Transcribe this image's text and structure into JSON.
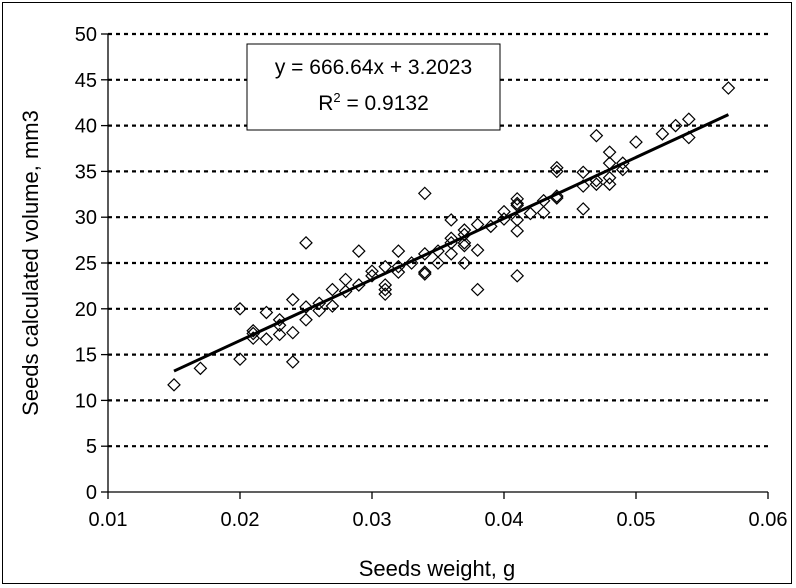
{
  "chart_data": {
    "type": "scatter",
    "xlabel": "Seeds weight, g",
    "ylabel": "Seeds calculated volume, mm3",
    "xlim": [
      0.01,
      0.06
    ],
    "ylim": [
      0,
      50
    ],
    "xticks": [
      "0.01",
      "0.02",
      "0.03",
      "0.04",
      "0.05",
      "0.06"
    ],
    "yticks": [
      "0",
      "5",
      "10",
      "15",
      "20",
      "25",
      "30",
      "35",
      "40",
      "45",
      "50"
    ],
    "grid": "horizontal dashed",
    "marker": "diamond",
    "trendline": {
      "type": "linear",
      "slope": 666.64,
      "intercept": 3.2023,
      "x_range": [
        0.015,
        0.057
      ],
      "equation": "y = 666.64x + 3.2023",
      "r2_label": "R",
      "r2_exp": "2",
      "r2_value": " = 0.9132"
    },
    "points": [
      [
        0.015,
        11.7
      ],
      [
        0.017,
        13.5
      ],
      [
        0.02,
        14.5
      ],
      [
        0.02,
        20.0
      ],
      [
        0.021,
        16.8
      ],
      [
        0.021,
        17.3
      ],
      [
        0.021,
        17.6
      ],
      [
        0.022,
        16.7
      ],
      [
        0.022,
        19.6
      ],
      [
        0.023,
        18.2
      ],
      [
        0.023,
        18.8
      ],
      [
        0.023,
        17.2
      ],
      [
        0.024,
        14.2
      ],
      [
        0.024,
        17.4
      ],
      [
        0.024,
        21.0
      ],
      [
        0.025,
        18.8
      ],
      [
        0.025,
        20.2
      ],
      [
        0.025,
        27.2
      ],
      [
        0.026,
        19.8
      ],
      [
        0.026,
        20.6
      ],
      [
        0.027,
        20.3
      ],
      [
        0.027,
        22.1
      ],
      [
        0.028,
        21.9
      ],
      [
        0.028,
        23.2
      ],
      [
        0.029,
        22.6
      ],
      [
        0.029,
        26.3
      ],
      [
        0.03,
        23.6
      ],
      [
        0.03,
        24.1
      ],
      [
        0.031,
        21.6
      ],
      [
        0.031,
        22.1
      ],
      [
        0.031,
        22.6
      ],
      [
        0.031,
        24.6
      ],
      [
        0.032,
        24.0
      ],
      [
        0.032,
        24.6
      ],
      [
        0.032,
        26.3
      ],
      [
        0.033,
        25.0
      ],
      [
        0.034,
        23.8
      ],
      [
        0.034,
        24.0
      ],
      [
        0.034,
        26.0
      ],
      [
        0.034,
        32.6
      ],
      [
        0.035,
        25.0
      ],
      [
        0.035,
        26.3
      ],
      [
        0.036,
        26.0
      ],
      [
        0.036,
        27.2
      ],
      [
        0.036,
        27.7
      ],
      [
        0.036,
        29.7
      ],
      [
        0.037,
        25.0
      ],
      [
        0.037,
        26.9
      ],
      [
        0.037,
        27.2
      ],
      [
        0.037,
        28.1
      ],
      [
        0.037,
        28.6
      ],
      [
        0.038,
        22.1
      ],
      [
        0.038,
        26.4
      ],
      [
        0.038,
        29.2
      ],
      [
        0.039,
        29.0
      ],
      [
        0.04,
        29.8
      ],
      [
        0.04,
        30.6
      ],
      [
        0.041,
        23.6
      ],
      [
        0.041,
        28.5
      ],
      [
        0.041,
        29.7
      ],
      [
        0.041,
        31.3
      ],
      [
        0.041,
        31.5
      ],
      [
        0.041,
        32.0
      ],
      [
        0.042,
        30.4
      ],
      [
        0.043,
        30.5
      ],
      [
        0.043,
        31.8
      ],
      [
        0.044,
        32.1
      ],
      [
        0.044,
        32.3
      ],
      [
        0.044,
        35.0
      ],
      [
        0.044,
        35.4
      ],
      [
        0.046,
        30.9
      ],
      [
        0.046,
        33.4
      ],
      [
        0.046,
        34.9
      ],
      [
        0.047,
        33.6
      ],
      [
        0.047,
        34.0
      ],
      [
        0.047,
        38.9
      ],
      [
        0.048,
        33.6
      ],
      [
        0.048,
        34.3
      ],
      [
        0.048,
        35.9
      ],
      [
        0.048,
        37.1
      ],
      [
        0.049,
        35.2
      ],
      [
        0.049,
        35.9
      ],
      [
        0.05,
        38.2
      ],
      [
        0.052,
        39.1
      ],
      [
        0.053,
        40.0
      ],
      [
        0.054,
        38.7
      ],
      [
        0.054,
        40.7
      ],
      [
        0.057,
        44.1
      ]
    ]
  }
}
